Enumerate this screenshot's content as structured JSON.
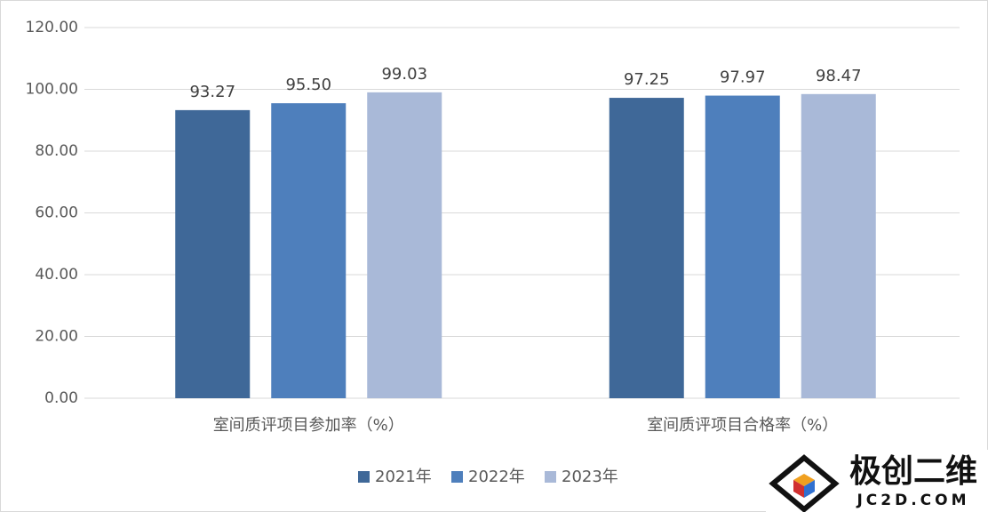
{
  "chart_data": {
    "type": "bar",
    "categories": [
      "室间质评项目参加率（%）",
      "室间质评项目合格率（%）"
    ],
    "series": [
      {
        "name": "2021年",
        "color": "#3f6898",
        "values": [
          93.27,
          97.25
        ],
        "value_labels": [
          "93.27",
          "97.25"
        ]
      },
      {
        "name": "2022年",
        "color": "#4e7fbc",
        "values": [
          95.5,
          97.97
        ],
        "value_labels": [
          "95.50",
          "97.97"
        ]
      },
      {
        "name": "2023年",
        "color": "#a9b9d8",
        "values": [
          99.03,
          98.47
        ],
        "value_labels": [
          "99.03",
          "98.47"
        ]
      }
    ],
    "ylim": [
      0,
      120
    ],
    "yticks": [
      {
        "value": 0,
        "label": "0.00"
      },
      {
        "value": 20,
        "label": "20.00"
      },
      {
        "value": 40,
        "label": "40.00"
      },
      {
        "value": 60,
        "label": "60.00"
      },
      {
        "value": 80,
        "label": "80.00"
      },
      {
        "value": 100,
        "label": "100.00"
      },
      {
        "value": 120,
        "label": "120.00"
      }
    ],
    "grid": true,
    "legend": "bottom"
  },
  "watermark": {
    "title": "极创二维",
    "subtitle": "JC2D.COM"
  }
}
